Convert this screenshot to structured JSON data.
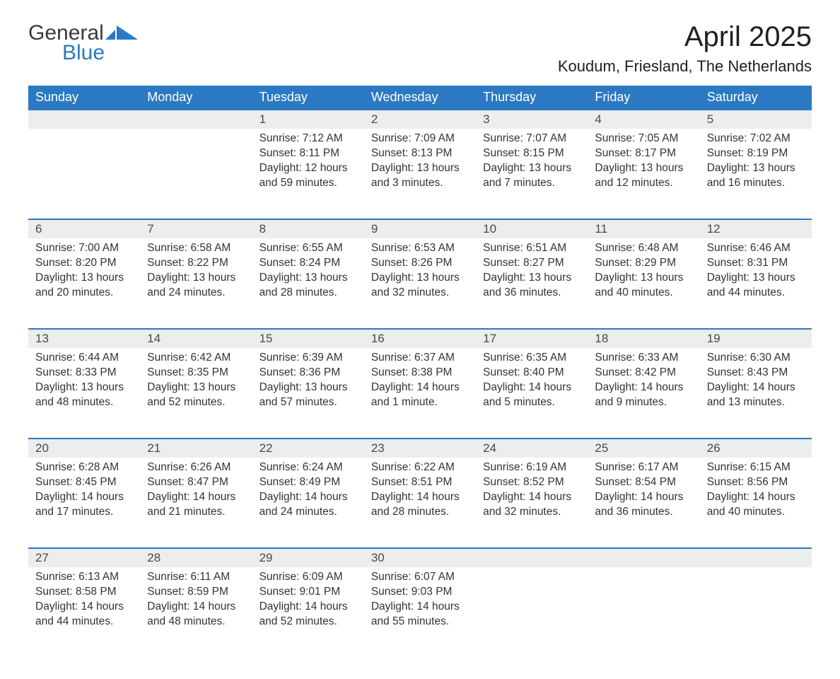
{
  "logo": {
    "part1": "General",
    "part2": "Blue",
    "icon_color": "#2b79c2"
  },
  "title": "April 2025",
  "location": "Koudum, Friesland, The Netherlands",
  "colors": {
    "header_bg": "#2b79c2",
    "header_text": "#ffffff",
    "daynum_bg": "#eceded",
    "row_border": "#2b79c2",
    "body_text": "#333333"
  },
  "weekdays": [
    "Sunday",
    "Monday",
    "Tuesday",
    "Wednesday",
    "Thursday",
    "Friday",
    "Saturday"
  ],
  "weeks": [
    [
      null,
      null,
      {
        "n": "1",
        "sunrise": "7:12 AM",
        "sunset": "8:11 PM",
        "daylight": "12 hours and 59 minutes."
      },
      {
        "n": "2",
        "sunrise": "7:09 AM",
        "sunset": "8:13 PM",
        "daylight": "13 hours and 3 minutes."
      },
      {
        "n": "3",
        "sunrise": "7:07 AM",
        "sunset": "8:15 PM",
        "daylight": "13 hours and 7 minutes."
      },
      {
        "n": "4",
        "sunrise": "7:05 AM",
        "sunset": "8:17 PM",
        "daylight": "13 hours and 12 minutes."
      },
      {
        "n": "5",
        "sunrise": "7:02 AM",
        "sunset": "8:19 PM",
        "daylight": "13 hours and 16 minutes."
      }
    ],
    [
      {
        "n": "6",
        "sunrise": "7:00 AM",
        "sunset": "8:20 PM",
        "daylight": "13 hours and 20 minutes."
      },
      {
        "n": "7",
        "sunrise": "6:58 AM",
        "sunset": "8:22 PM",
        "daylight": "13 hours and 24 minutes."
      },
      {
        "n": "8",
        "sunrise": "6:55 AM",
        "sunset": "8:24 PM",
        "daylight": "13 hours and 28 minutes."
      },
      {
        "n": "9",
        "sunrise": "6:53 AM",
        "sunset": "8:26 PM",
        "daylight": "13 hours and 32 minutes."
      },
      {
        "n": "10",
        "sunrise": "6:51 AM",
        "sunset": "8:27 PM",
        "daylight": "13 hours and 36 minutes."
      },
      {
        "n": "11",
        "sunrise": "6:48 AM",
        "sunset": "8:29 PM",
        "daylight": "13 hours and 40 minutes."
      },
      {
        "n": "12",
        "sunrise": "6:46 AM",
        "sunset": "8:31 PM",
        "daylight": "13 hours and 44 minutes."
      }
    ],
    [
      {
        "n": "13",
        "sunrise": "6:44 AM",
        "sunset": "8:33 PM",
        "daylight": "13 hours and 48 minutes."
      },
      {
        "n": "14",
        "sunrise": "6:42 AM",
        "sunset": "8:35 PM",
        "daylight": "13 hours and 52 minutes."
      },
      {
        "n": "15",
        "sunrise": "6:39 AM",
        "sunset": "8:36 PM",
        "daylight": "13 hours and 57 minutes."
      },
      {
        "n": "16",
        "sunrise": "6:37 AM",
        "sunset": "8:38 PM",
        "daylight": "14 hours and 1 minute."
      },
      {
        "n": "17",
        "sunrise": "6:35 AM",
        "sunset": "8:40 PM",
        "daylight": "14 hours and 5 minutes."
      },
      {
        "n": "18",
        "sunrise": "6:33 AM",
        "sunset": "8:42 PM",
        "daylight": "14 hours and 9 minutes."
      },
      {
        "n": "19",
        "sunrise": "6:30 AM",
        "sunset": "8:43 PM",
        "daylight": "14 hours and 13 minutes."
      }
    ],
    [
      {
        "n": "20",
        "sunrise": "6:28 AM",
        "sunset": "8:45 PM",
        "daylight": "14 hours and 17 minutes."
      },
      {
        "n": "21",
        "sunrise": "6:26 AM",
        "sunset": "8:47 PM",
        "daylight": "14 hours and 21 minutes."
      },
      {
        "n": "22",
        "sunrise": "6:24 AM",
        "sunset": "8:49 PM",
        "daylight": "14 hours and 24 minutes."
      },
      {
        "n": "23",
        "sunrise": "6:22 AM",
        "sunset": "8:51 PM",
        "daylight": "14 hours and 28 minutes."
      },
      {
        "n": "24",
        "sunrise": "6:19 AM",
        "sunset": "8:52 PM",
        "daylight": "14 hours and 32 minutes."
      },
      {
        "n": "25",
        "sunrise": "6:17 AM",
        "sunset": "8:54 PM",
        "daylight": "14 hours and 36 minutes."
      },
      {
        "n": "26",
        "sunrise": "6:15 AM",
        "sunset": "8:56 PM",
        "daylight": "14 hours and 40 minutes."
      }
    ],
    [
      {
        "n": "27",
        "sunrise": "6:13 AM",
        "sunset": "8:58 PM",
        "daylight": "14 hours and 44 minutes."
      },
      {
        "n": "28",
        "sunrise": "6:11 AM",
        "sunset": "8:59 PM",
        "daylight": "14 hours and 48 minutes."
      },
      {
        "n": "29",
        "sunrise": "6:09 AM",
        "sunset": "9:01 PM",
        "daylight": "14 hours and 52 minutes."
      },
      {
        "n": "30",
        "sunrise": "6:07 AM",
        "sunset": "9:03 PM",
        "daylight": "14 hours and 55 minutes."
      },
      null,
      null,
      null
    ]
  ],
  "labels": {
    "sunrise": "Sunrise: ",
    "sunset": "Sunset: ",
    "daylight": "Daylight: "
  }
}
